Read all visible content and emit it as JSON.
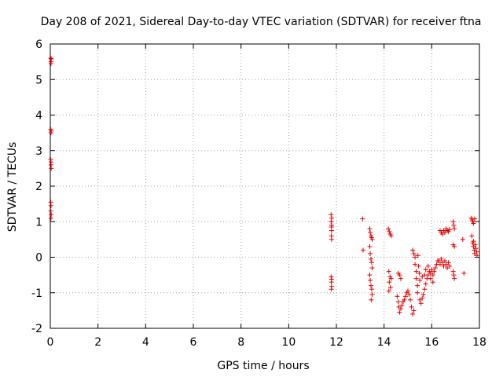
{
  "chart_data": {
    "type": "scatter",
    "title": "Day 208 of 2021, Sidereal Day-to-day VTEC variation (SDTVAR) for receiver ftna",
    "xlabel": "GPS time / hours",
    "ylabel": "SDTVAR / TECUs",
    "xlim": [
      0,
      18
    ],
    "ylim": [
      -2,
      6
    ],
    "xticks": [
      0,
      2,
      4,
      6,
      8,
      10,
      12,
      14,
      16,
      18
    ],
    "yticks": [
      -2,
      -1,
      0,
      1,
      2,
      3,
      4,
      5,
      6
    ],
    "grid": true,
    "marker": "+",
    "marker_color": "#e00000",
    "series": [
      {
        "name": "SDTVAR",
        "points": [
          [
            0.02,
            5.6
          ],
          [
            0.03,
            5.5
          ],
          [
            0.03,
            5.45
          ],
          [
            0.04,
            5.58
          ],
          [
            0.02,
            3.6
          ],
          [
            0.03,
            3.5
          ],
          [
            0.04,
            3.55
          ],
          [
            0.02,
            2.75
          ],
          [
            0.03,
            2.6
          ],
          [
            0.04,
            2.5
          ],
          [
            0.03,
            2.68
          ],
          [
            0.02,
            1.55
          ],
          [
            0.03,
            1.45
          ],
          [
            0.02,
            1.3
          ],
          [
            0.04,
            1.2
          ],
          [
            0.03,
            1.1
          ],
          [
            11.78,
            1.2
          ],
          [
            11.8,
            1.1
          ],
          [
            11.78,
            1.0
          ],
          [
            11.8,
            0.9
          ],
          [
            11.79,
            0.85
          ],
          [
            11.8,
            0.75
          ],
          [
            11.79,
            0.6
          ],
          [
            11.8,
            0.5
          ],
          [
            11.78,
            -0.55
          ],
          [
            11.8,
            -0.62
          ],
          [
            11.79,
            -0.7
          ],
          [
            11.8,
            -0.82
          ],
          [
            11.79,
            -0.9
          ],
          [
            13.1,
            1.08
          ],
          [
            13.12,
            0.2
          ],
          [
            13.4,
            0.8
          ],
          [
            13.42,
            0.7
          ],
          [
            13.45,
            0.6
          ],
          [
            13.48,
            0.55
          ],
          [
            13.5,
            0.5
          ],
          [
            13.4,
            0.3
          ],
          [
            13.42,
            0.1
          ],
          [
            13.45,
            -0.05
          ],
          [
            13.48,
            -0.15
          ],
          [
            13.5,
            -0.3
          ],
          [
            13.4,
            -0.5
          ],
          [
            13.42,
            -0.65
          ],
          [
            13.45,
            -0.8
          ],
          [
            13.48,
            -0.9
          ],
          [
            13.5,
            -1.05
          ],
          [
            13.46,
            -1.2
          ],
          [
            14.18,
            0.8
          ],
          [
            14.22,
            0.72
          ],
          [
            14.26,
            0.65
          ],
          [
            14.3,
            0.6
          ],
          [
            14.2,
            -0.4
          ],
          [
            14.25,
            -0.55
          ],
          [
            14.3,
            -0.6
          ],
          [
            14.22,
            -0.7
          ],
          [
            14.27,
            -0.85
          ],
          [
            14.2,
            -0.95
          ],
          [
            14.6,
            -0.45
          ],
          [
            14.65,
            -0.5
          ],
          [
            14.7,
            -0.6
          ],
          [
            14.55,
            -1.1
          ],
          [
            14.6,
            -1.25
          ],
          [
            14.62,
            -1.4
          ],
          [
            14.65,
            -1.55
          ],
          [
            14.7,
            -1.45
          ],
          [
            14.75,
            -1.35
          ],
          [
            14.8,
            -1.25
          ],
          [
            14.85,
            -1.2
          ],
          [
            14.9,
            -1.1
          ],
          [
            14.95,
            -1.0
          ],
          [
            15.0,
            -0.95
          ],
          [
            15.05,
            -1.05
          ],
          [
            15.1,
            -1.2
          ],
          [
            15.15,
            -1.4
          ],
          [
            15.2,
            -1.6
          ],
          [
            15.25,
            -1.5
          ],
          [
            15.2,
            0.2
          ],
          [
            15.25,
            0.1
          ],
          [
            15.3,
            0.0
          ],
          [
            15.3,
            -0.2
          ],
          [
            15.35,
            -0.4
          ],
          [
            15.35,
            -0.6
          ],
          [
            15.4,
            -0.8
          ],
          [
            15.4,
            -1.0
          ],
          [
            15.42,
            0.05
          ],
          [
            15.45,
            -0.25
          ],
          [
            15.48,
            -0.45
          ],
          [
            15.5,
            -0.65
          ],
          [
            15.5,
            -1.2
          ],
          [
            15.55,
            -1.3
          ],
          [
            15.6,
            -1.15
          ],
          [
            15.65,
            -1.05
          ],
          [
            15.7,
            -0.9
          ],
          [
            15.75,
            -0.75
          ],
          [
            15.8,
            -0.6
          ],
          [
            15.85,
            -0.5
          ],
          [
            15.9,
            -0.4
          ],
          [
            15.95,
            -0.45
          ],
          [
            16.0,
            -0.35
          ],
          [
            16.05,
            -0.5
          ],
          [
            16.1,
            -0.4
          ],
          [
            16.15,
            -0.3
          ],
          [
            16.2,
            -0.2
          ],
          [
            16.25,
            -0.1
          ],
          [
            15.6,
            -0.55
          ],
          [
            15.7,
            -0.5
          ],
          [
            15.75,
            -0.35
          ],
          [
            15.85,
            -0.25
          ],
          [
            15.95,
            -0.6
          ],
          [
            16.05,
            -0.7
          ],
          [
            16.3,
            -0.1
          ],
          [
            16.35,
            -0.2
          ],
          [
            16.4,
            -0.05
          ],
          [
            16.45,
            -0.15
          ],
          [
            16.5,
            -0.25
          ],
          [
            16.55,
            -0.1
          ],
          [
            16.6,
            -0.2
          ],
          [
            16.65,
            -0.3
          ],
          [
            16.7,
            -0.15
          ],
          [
            16.75,
            -0.25
          ],
          [
            16.35,
            0.75
          ],
          [
            16.4,
            0.7
          ],
          [
            16.45,
            0.65
          ],
          [
            16.5,
            0.75
          ],
          [
            16.55,
            0.7
          ],
          [
            16.6,
            0.8
          ],
          [
            16.65,
            0.75
          ],
          [
            16.7,
            0.72
          ],
          [
            16.75,
            0.78
          ],
          [
            16.9,
            1.0
          ],
          [
            16.92,
            0.9
          ],
          [
            16.95,
            0.8
          ],
          [
            16.9,
            0.35
          ],
          [
            16.95,
            0.3
          ],
          [
            16.9,
            -0.4
          ],
          [
            16.92,
            -0.5
          ],
          [
            16.95,
            -0.6
          ],
          [
            17.3,
            0.5
          ],
          [
            17.35,
            -0.45
          ],
          [
            17.65,
            1.1
          ],
          [
            17.7,
            1.05
          ],
          [
            17.72,
            1.0
          ],
          [
            17.75,
            0.95
          ],
          [
            17.8,
            1.08
          ],
          [
            17.68,
            0.6
          ],
          [
            17.72,
            0.4
          ],
          [
            17.75,
            0.3
          ],
          [
            17.78,
            0.2
          ],
          [
            17.8,
            0.1
          ],
          [
            17.85,
            0.25
          ],
          [
            17.88,
            0.15
          ],
          [
            17.9,
            0.05
          ],
          [
            17.75,
            0.45
          ],
          [
            17.82,
            0.35
          ]
        ]
      }
    ]
  }
}
